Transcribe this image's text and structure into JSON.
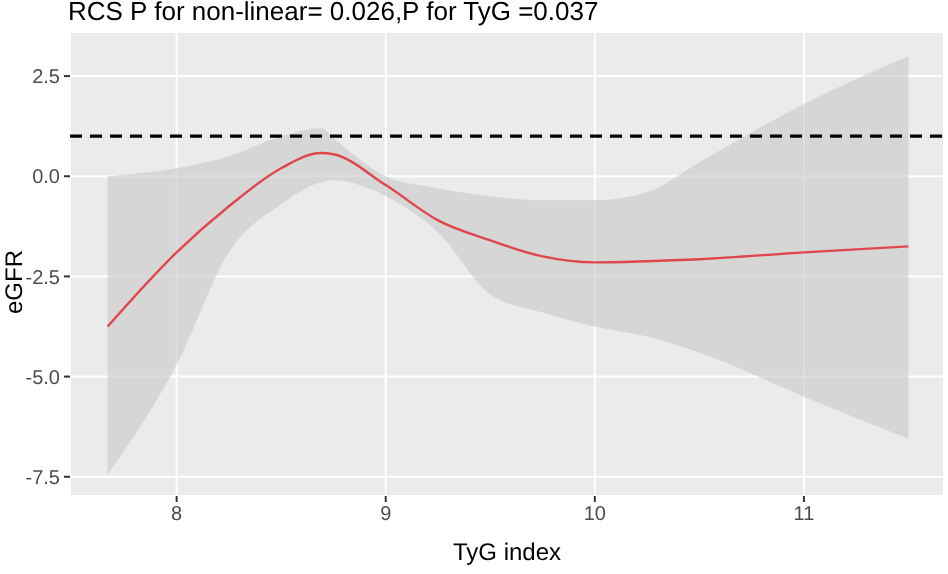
{
  "chart_data": {
    "type": "line",
    "title": "RCS P for non-linear= 0.026,P for TyG =0.037",
    "xlabel": "TyG index",
    "ylabel": "eGFR",
    "x": [
      7.67,
      8,
      8.25,
      8.5,
      8.69,
      8.75,
      9,
      9.25,
      9.5,
      9.75,
      10,
      10.25,
      10.5,
      11,
      11.5
    ],
    "series": [
      {
        "color": "#e0474c",
        "values": [
          -3.75,
          -1.9,
          -0.75,
          0.2,
          0.58,
          0.55,
          -0.22,
          -1.1,
          -1.6,
          -2.0,
          -2.15,
          -2.12,
          -2.07,
          -1.9,
          -1.75
        ],
        "lower": [
          -7.45,
          -4.7,
          -1.9,
          -0.7,
          -0.15,
          -0.1,
          -0.5,
          -1.4,
          -2.95,
          -3.4,
          -3.75,
          -4.0,
          -4.4,
          -5.5,
          -6.55
        ],
        "upper": [
          0.0,
          0.2,
          0.5,
          1.0,
          1.2,
          0.95,
          0.0,
          -0.3,
          -0.5,
          -0.6,
          -0.6,
          -0.4,
          0.35,
          1.8,
          3.0
        ]
      }
    ],
    "xlim": [
      7.49,
      11.67
    ],
    "xticks": [
      8,
      9,
      10,
      11
    ],
    "ylim": [
      -7.98,
      3.6
    ],
    "yticks": [
      {
        "value": 2.5,
        "label": "2.5"
      },
      {
        "value": 0,
        "label": "0.0"
      },
      {
        "value": -2.5,
        "label": "-2.5"
      },
      {
        "value": -5,
        "label": "-5.0"
      },
      {
        "value": -7.5,
        "label": "-7.5"
      }
    ],
    "ref_lines": [
      {
        "axis": "y",
        "value": 1,
        "color": "#000000",
        "line_style": "dashed"
      }
    ],
    "grid": true,
    "legend": false,
    "line_style": "solid",
    "marker": "none"
  }
}
